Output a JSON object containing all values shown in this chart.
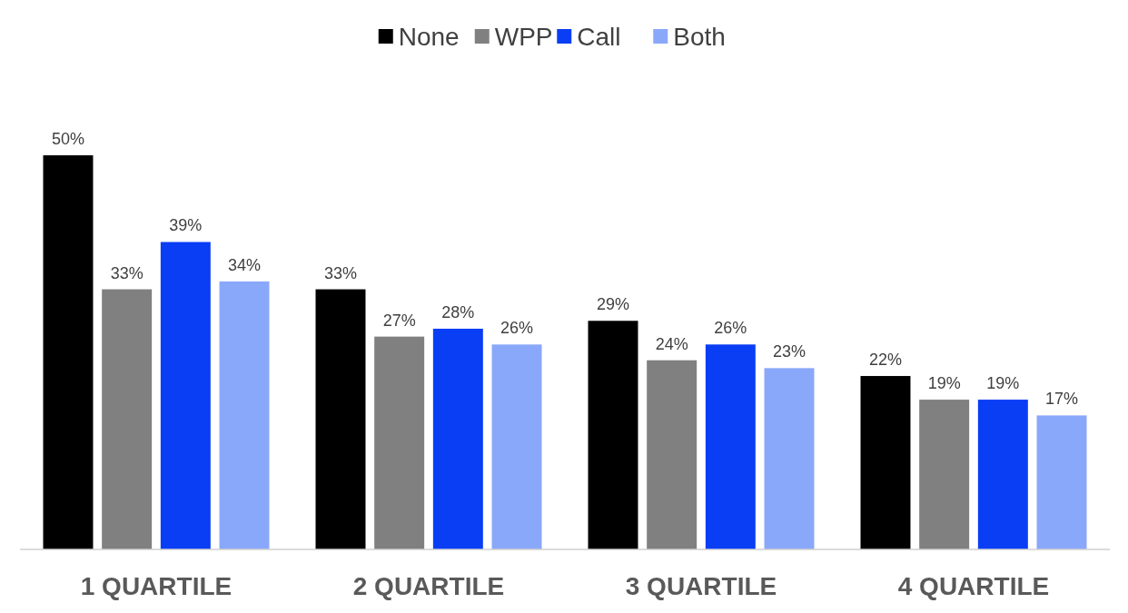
{
  "chart_data": {
    "type": "bar",
    "categories": [
      "1 QUARTILE",
      "2 QUARTILE",
      "3 QUARTILE",
      "4 QUARTILE"
    ],
    "legend": "top",
    "series": [
      {
        "name": "None",
        "color": "#000000",
        "values": [
          50,
          33,
          29,
          22
        ],
        "value_labels": [
          "50%",
          "33%",
          "29%",
          "22%"
        ]
      },
      {
        "name": "WPP",
        "color": "#808080",
        "values": [
          33,
          27,
          24,
          19
        ],
        "value_labels": [
          "33%",
          "27%",
          "24%",
          "19%"
        ]
      },
      {
        "name": "Call",
        "color": "#0a3ef5",
        "values": [
          39,
          28,
          26,
          19
        ],
        "value_labels": [
          "39%",
          "28%",
          "26%",
          "19%"
        ]
      },
      {
        "name": "Both",
        "color": "#8aa8fa",
        "values": [
          34,
          26,
          23,
          17
        ],
        "value_labels": [
          "34%",
          "26%",
          "23%",
          "17%"
        ]
      }
    ]
  }
}
